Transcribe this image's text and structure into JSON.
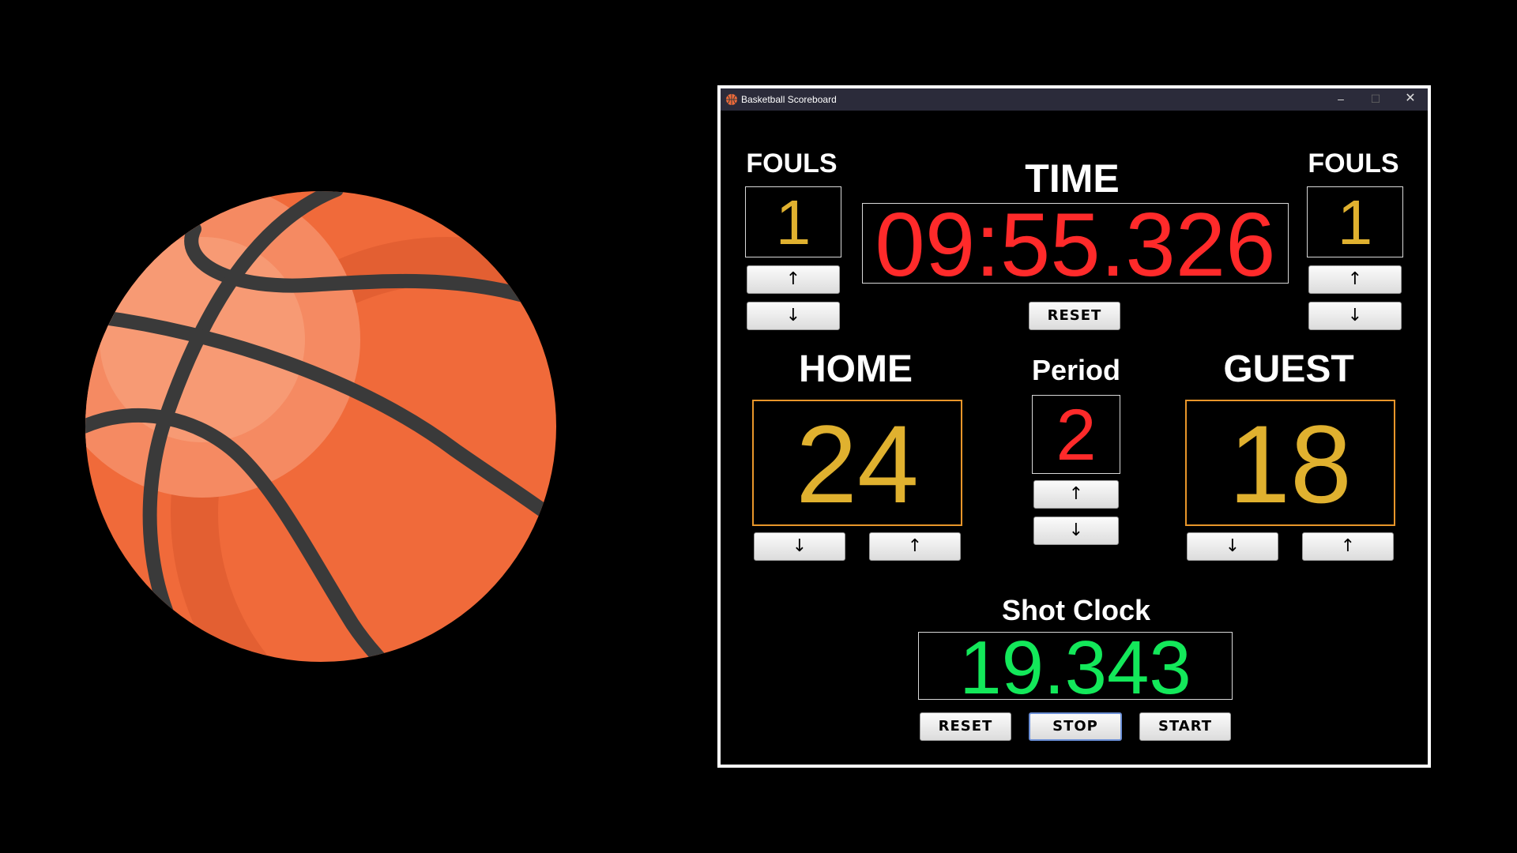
{
  "window": {
    "title": "Basketball Scoreboard",
    "min_glyph": "–",
    "max_glyph": "☐",
    "close_glyph": "✕"
  },
  "colors": {
    "gold": "#e0b12f",
    "time_red": "#ff2a2a",
    "shot_green": "#13e85a",
    "score_border": "#e8962a"
  },
  "fouls_left": {
    "label": "FOULS",
    "value": "1",
    "up": "↑",
    "down": "↓"
  },
  "fouls_right": {
    "label": "FOULS",
    "value": "1",
    "up": "↑",
    "down": "↓"
  },
  "time": {
    "label": "TIME",
    "value": "09:55.326",
    "reset": "RESET"
  },
  "home": {
    "label": "HOME",
    "score": "24",
    "down": "↓",
    "up": "↑"
  },
  "guest": {
    "label": "GUEST",
    "score": "18",
    "down": "↓",
    "up": "↑"
  },
  "period": {
    "label": "Period",
    "value": "2",
    "up": "↑",
    "down": "↓"
  },
  "shot_clock": {
    "label": "Shot Clock",
    "value": "19.343",
    "reset": "RESET",
    "stop": "STOP",
    "start": "START"
  }
}
